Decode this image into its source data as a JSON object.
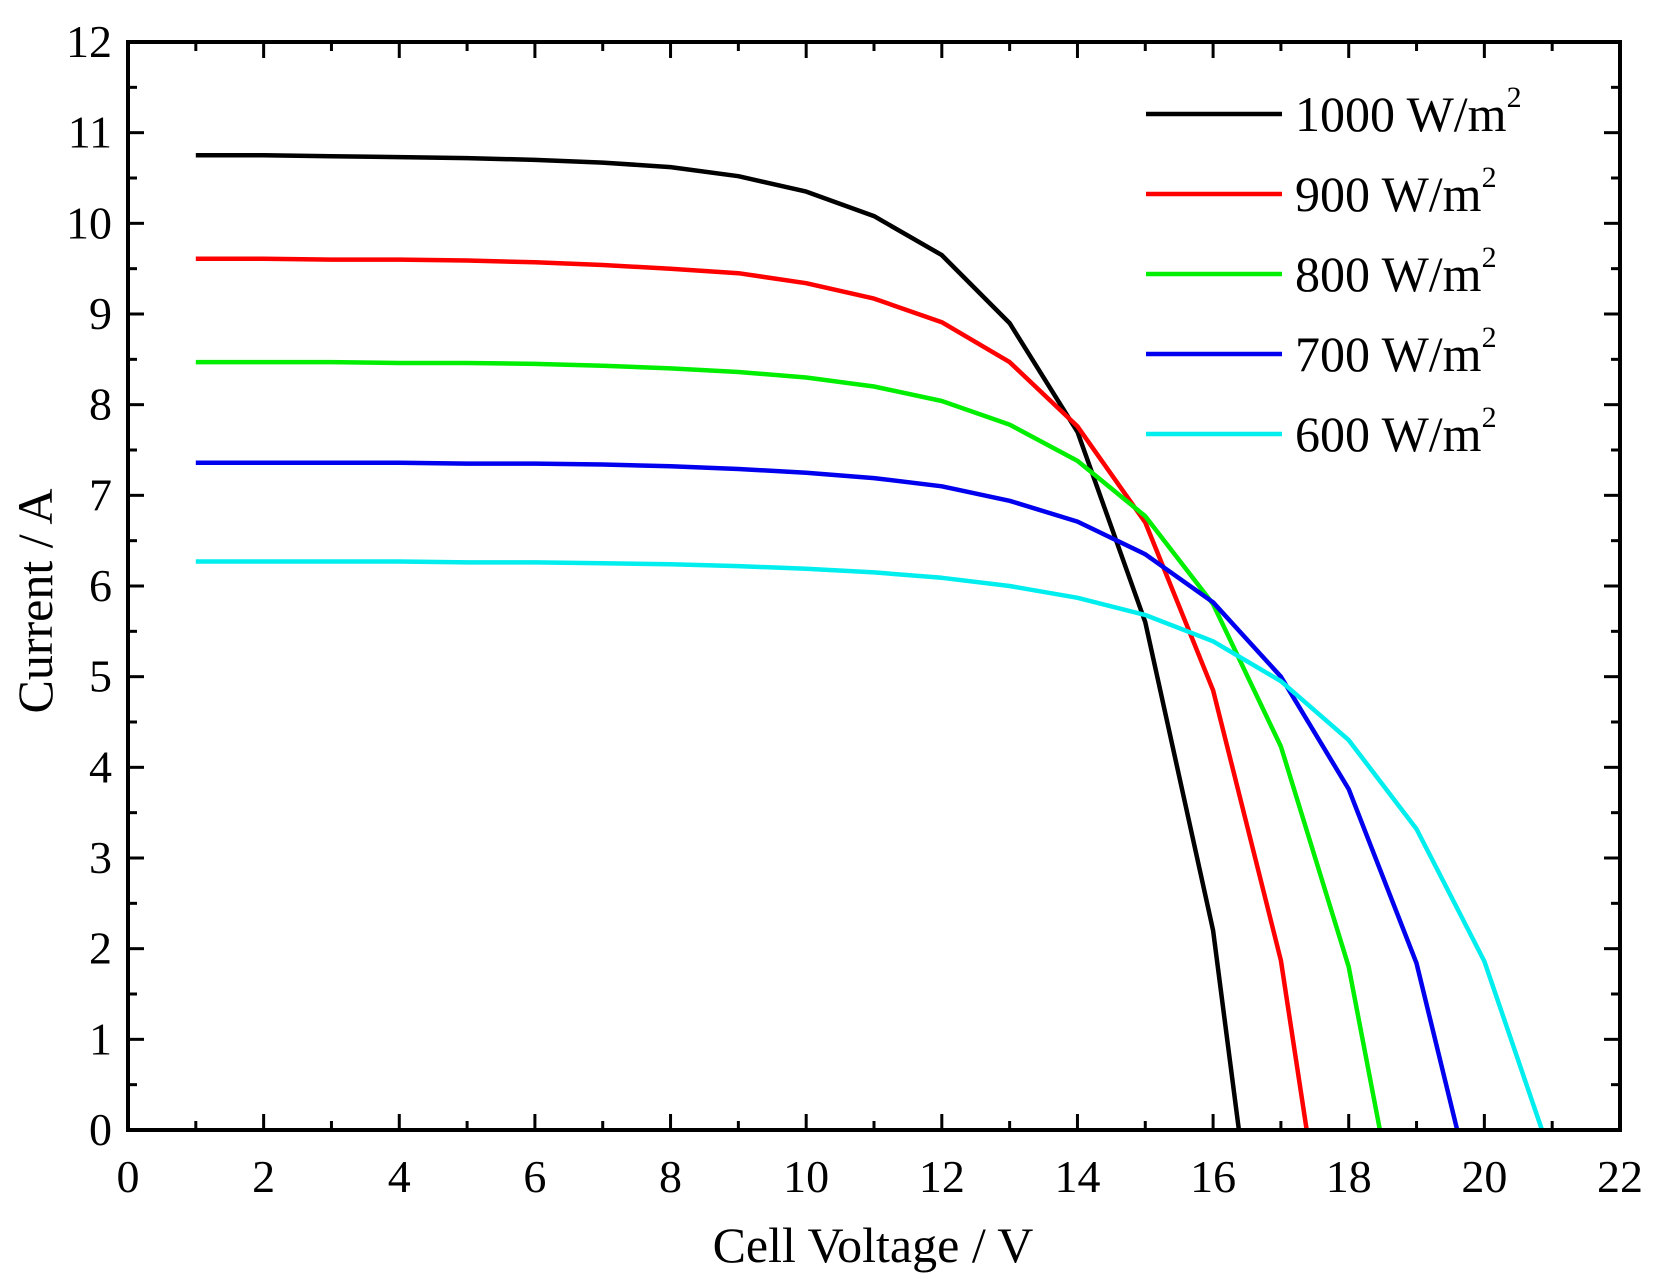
{
  "chart_data": {
    "type": "line",
    "title": "",
    "xlabel": "Cell Voltage / V",
    "ylabel": "Current / A",
    "xlim": [
      0,
      22
    ],
    "ylim": [
      0,
      12
    ],
    "xticks": [
      "0",
      "2",
      "4",
      "6",
      "8",
      "10",
      "12",
      "14",
      "16",
      "18",
      "20",
      "22"
    ],
    "yticks": [
      "0",
      "1",
      "2",
      "3",
      "4",
      "5",
      "6",
      "7",
      "8",
      "9",
      "10",
      "11",
      "12"
    ],
    "grid": false,
    "legend_position": "top-right",
    "series": [
      {
        "name": "1000 W/m",
        "unit_sup": "2",
        "color": "#000000",
        "x": [
          1,
          2,
          3,
          4,
          5,
          6,
          7,
          8,
          9,
          10,
          11,
          12,
          13,
          14,
          15,
          16,
          16.38
        ],
        "y": [
          10.75,
          10.75,
          10.74,
          10.73,
          10.72,
          10.7,
          10.67,
          10.62,
          10.52,
          10.35,
          10.08,
          9.65,
          8.9,
          7.7,
          5.6,
          2.2,
          0
        ]
      },
      {
        "name": "900 W/m",
        "unit_sup": "2",
        "color": "#ff0000",
        "x": [
          1,
          2,
          3,
          4,
          5,
          6,
          7,
          8,
          9,
          10,
          11,
          12,
          13,
          14,
          15,
          16,
          17,
          17.38
        ],
        "y": [
          9.61,
          9.61,
          9.6,
          9.6,
          9.59,
          9.57,
          9.54,
          9.5,
          9.45,
          9.34,
          9.17,
          8.91,
          8.47,
          7.76,
          6.7,
          4.85,
          1.87,
          0
        ]
      },
      {
        "name": "800 W/m",
        "unit_sup": "2",
        "color": "#00ee00",
        "x": [
          1,
          2,
          3,
          4,
          5,
          6,
          7,
          8,
          9,
          10,
          11,
          12,
          13,
          14,
          15,
          16,
          17,
          18,
          18.46
        ],
        "y": [
          8.47,
          8.47,
          8.47,
          8.46,
          8.46,
          8.45,
          8.43,
          8.4,
          8.36,
          8.3,
          8.2,
          8.04,
          7.78,
          7.38,
          6.77,
          5.8,
          4.23,
          1.8,
          0
        ]
      },
      {
        "name": "700 W/m",
        "unit_sup": "2",
        "color": "#0000ee",
        "x": [
          1,
          2,
          3,
          4,
          5,
          6,
          7,
          8,
          9,
          10,
          11,
          12,
          13,
          14,
          15,
          16,
          17,
          18,
          19,
          19.6
        ],
        "y": [
          7.36,
          7.36,
          7.36,
          7.36,
          7.35,
          7.35,
          7.34,
          7.32,
          7.29,
          7.25,
          7.19,
          7.1,
          6.94,
          6.71,
          6.35,
          5.82,
          5.0,
          3.76,
          1.84,
          0
        ]
      },
      {
        "name": "600 W/m",
        "unit_sup": "2",
        "color": "#00eeee",
        "x": [
          1,
          2,
          3,
          4,
          5,
          6,
          7,
          8,
          9,
          10,
          11,
          12,
          13,
          14,
          15,
          16,
          17,
          18,
          19,
          20,
          20.85
        ],
        "y": [
          6.27,
          6.27,
          6.27,
          6.27,
          6.26,
          6.26,
          6.25,
          6.24,
          6.22,
          6.19,
          6.15,
          6.09,
          6.0,
          5.87,
          5.68,
          5.39,
          4.95,
          4.3,
          3.32,
          1.86,
          0
        ]
      }
    ]
  }
}
